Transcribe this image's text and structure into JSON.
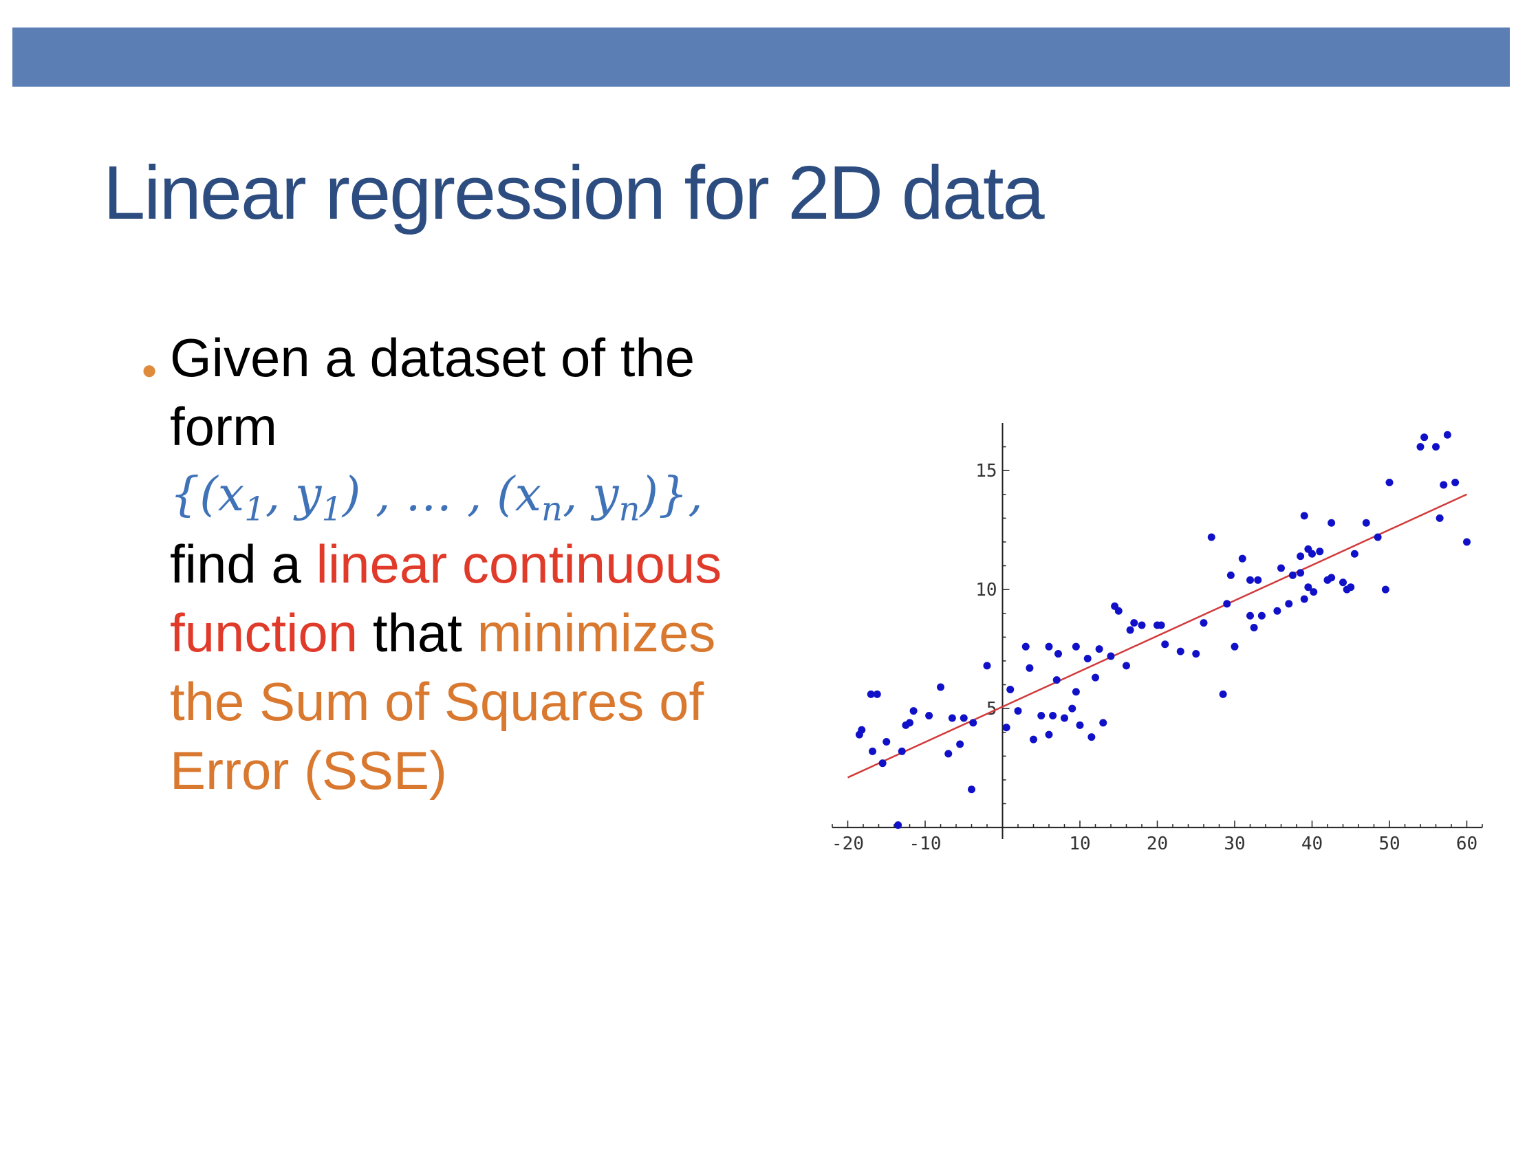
{
  "slide": {
    "title": "Linear regression for 2D data"
  },
  "bullet": {
    "line1": "Given a dataset of the",
    "line2": "form",
    "math_open": "{(",
    "math_x": "x",
    "math_sub1": "1",
    "math_comma": ", ",
    "math_y": "y",
    "math_close1": ") , … , (",
    "math_xn": "x",
    "math_subn": "n",
    "math_yn": "y",
    "math_close2": ")},",
    "line4a": "find a ",
    "line4b": "linear continuous",
    "line5a": "function",
    "line5b": " that ",
    "line5c": "minimizes",
    "line6": "the Sum of Squares of",
    "line7": "Error (SSE)"
  },
  "colors": {
    "bar": "#5b7fb5",
    "title": "#2d4d80",
    "math": "#3f72b7",
    "red": "#e03a2a",
    "orange": "#d9782f",
    "point": "#1010c8",
    "fit_line": "#d23a3a"
  },
  "chart_data": {
    "type": "scatter",
    "xlim": [
      -22,
      62
    ],
    "ylim": [
      -0.2,
      17
    ],
    "x_ticks": [
      -20,
      -10,
      10,
      20,
      30,
      40,
      50,
      60
    ],
    "x_tick_labels": [
      "-20",
      "-10",
      "10",
      "20",
      "30",
      "40",
      "50",
      "60"
    ],
    "y_ticks": [
      5,
      10,
      15
    ],
    "y_tick_labels": [
      "5",
      "10",
      "15"
    ],
    "grid": false,
    "fit_line": {
      "x": [
        -20,
        60
      ],
      "y": [
        2.1,
        14
      ]
    },
    "points": [
      [
        -18.5,
        3.9
      ],
      [
        -18.2,
        4.1
      ],
      [
        -17,
        5.6
      ],
      [
        -16.2,
        5.6
      ],
      [
        -16.8,
        3.2
      ],
      [
        -15.5,
        2.7
      ],
      [
        -15,
        3.6
      ],
      [
        -13.5,
        0.1
      ],
      [
        -13,
        3.2
      ],
      [
        -12.5,
        4.3
      ],
      [
        -12,
        4.4
      ],
      [
        -11.5,
        4.9
      ],
      [
        -9.5,
        4.7
      ],
      [
        -8,
        5.9
      ],
      [
        -7,
        3.1
      ],
      [
        -6.5,
        4.6
      ],
      [
        -5.5,
        3.5
      ],
      [
        -5,
        4.6
      ],
      [
        -4,
        1.6
      ],
      [
        -3.8,
        4.4
      ],
      [
        -2,
        6.8
      ],
      [
        0.5,
        4.2
      ],
      [
        1,
        5.8
      ],
      [
        2,
        4.9
      ],
      [
        3,
        7.6
      ],
      [
        3.5,
        6.7
      ],
      [
        4,
        3.7
      ],
      [
        5,
        4.7
      ],
      [
        6,
        3.9
      ],
      [
        6,
        7.6
      ],
      [
        6.5,
        4.7
      ],
      [
        7,
        6.2
      ],
      [
        7.2,
        7.3
      ],
      [
        8,
        4.6
      ],
      [
        9,
        5
      ],
      [
        9.5,
        5.7
      ],
      [
        9.5,
        7.6
      ],
      [
        10,
        4.3
      ],
      [
        11,
        7.1
      ],
      [
        11.5,
        3.8
      ],
      [
        12,
        6.3
      ],
      [
        12.5,
        7.5
      ],
      [
        13,
        4.4
      ],
      [
        14,
        7.2
      ],
      [
        14.5,
        9.3
      ],
      [
        15,
        9.1
      ],
      [
        16,
        6.8
      ],
      [
        16.5,
        8.3
      ],
      [
        17,
        8.6
      ],
      [
        18,
        8.5
      ],
      [
        20,
        8.5
      ],
      [
        20.5,
        8.5
      ],
      [
        21,
        7.7
      ],
      [
        23,
        7.4
      ],
      [
        25,
        7.3
      ],
      [
        26,
        8.6
      ],
      [
        27,
        12.2
      ],
      [
        28.5,
        5.6
      ],
      [
        29,
        9.4
      ],
      [
        29.5,
        10.6
      ],
      [
        30,
        7.6
      ],
      [
        31,
        11.3
      ],
      [
        32,
        8.9
      ],
      [
        32.5,
        8.4
      ],
      [
        32,
        10.4
      ],
      [
        33,
        10.4
      ],
      [
        33.5,
        8.9
      ],
      [
        35.5,
        9.1
      ],
      [
        36,
        10.9
      ],
      [
        37,
        9.4
      ],
      [
        37.5,
        10.6
      ],
      [
        38.5,
        11.4
      ],
      [
        38.5,
        10.7
      ],
      [
        39,
        13.1
      ],
      [
        39,
        9.6
      ],
      [
        39.5,
        11.7
      ],
      [
        39.5,
        10.1
      ],
      [
        40,
        11.5
      ],
      [
        40.2,
        9.9
      ],
      [
        41,
        11.6
      ],
      [
        42,
        10.4
      ],
      [
        42.5,
        10.5
      ],
      [
        42.5,
        12.8
      ],
      [
        44,
        10.3
      ],
      [
        44.5,
        10
      ],
      [
        45,
        10.1
      ],
      [
        45.5,
        11.5
      ],
      [
        47,
        12.8
      ],
      [
        48.5,
        12.2
      ],
      [
        49.5,
        10.0
      ],
      [
        50,
        14.5
      ],
      [
        54,
        16
      ],
      [
        54.5,
        16.4
      ],
      [
        56,
        16
      ],
      [
        56.5,
        13
      ],
      [
        57,
        14.4
      ],
      [
        57.5,
        16.5
      ],
      [
        58.5,
        14.5
      ],
      [
        60,
        12
      ]
    ]
  }
}
